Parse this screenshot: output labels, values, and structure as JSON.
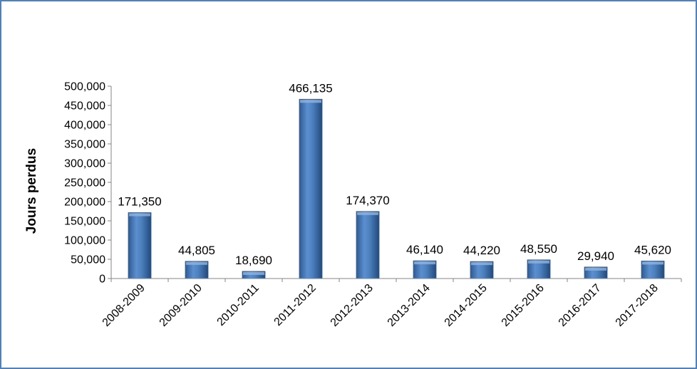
{
  "chart_data": {
    "type": "bar",
    "title": "",
    "xlabel": "",
    "ylabel": "Jours perdus",
    "categories": [
      "2008-2009",
      "2009-2010",
      "2010-2011",
      "2011-2012",
      "2012-2013",
      "2013-2014",
      "2014-2015",
      "2015-2016",
      "2016-2017",
      "2017-2018"
    ],
    "values": [
      171350,
      44805,
      18690,
      466135,
      174370,
      46140,
      44220,
      48550,
      29940,
      45620
    ],
    "data_labels": [
      "171,350",
      "44,805",
      "18,690",
      "466,135",
      "174,370",
      "46,140",
      "44,220",
      "48,550",
      "29,940",
      "45,620"
    ],
    "ylim": [
      0,
      500000
    ],
    "yticks": [
      "0",
      "50,000",
      "100,000",
      "150,000",
      "200,000",
      "250,000",
      "300,000",
      "350,000",
      "400,000",
      "450,000",
      "500,000"
    ],
    "bar_color": "#4a7ebb",
    "grid": false,
    "legend": "none"
  }
}
